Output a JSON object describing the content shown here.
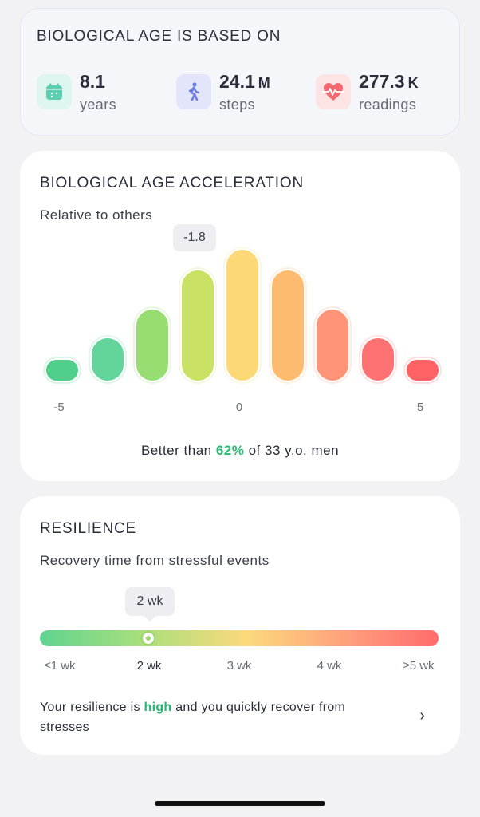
{
  "basis": {
    "title": "BIOLOGICAL AGE IS BASED ON",
    "stats": [
      {
        "value": "8.1",
        "unit": "",
        "label": "years",
        "icon": "calendar-icon",
        "color": "#5bcfb0",
        "bg": "#dff5ef"
      },
      {
        "value": "24.1",
        "unit": "M",
        "label": "steps",
        "icon": "walking-icon",
        "color": "#6f7fe0",
        "bg": "#e3e6fa"
      },
      {
        "value": "277.3",
        "unit": "K",
        "label": "readings",
        "icon": "heart-pulse-icon",
        "color": "#f2686f",
        "bg": "#fde4e4"
      }
    ]
  },
  "acceleration": {
    "title": "BIOLOGICAL AGE ACCELERATION",
    "subtitle": "Relative to others",
    "tooltip": "-1.8",
    "axis": {
      "min": "-5",
      "mid": "0",
      "max": "5"
    },
    "footer": {
      "prefix": "Better than ",
      "highlight": "62%",
      "suffix": " of 33 y.o. men"
    }
  },
  "chart_data": {
    "type": "bar",
    "values": [
      1,
      2.2,
      3.6,
      5.5,
      6.5,
      5.5,
      3.6,
      2.2,
      1
    ],
    "colors": [
      "#4fcf8a",
      "#62d49c",
      "#98dd72",
      "#c9e266",
      "#fcd976",
      "#fdbb6f",
      "#ff9479",
      "#ff7273",
      "#ff6164"
    ],
    "highlight_index": 3,
    "ylim": [
      0,
      6.5
    ],
    "xlabels": [
      "-5",
      "0",
      "5"
    ]
  },
  "resilience": {
    "title": "RESILIENCE",
    "subtitle": "Recovery time from stressful events",
    "tooltip": "2 wk",
    "ticks": [
      "≤1 wk",
      "2 wk",
      "3 wk",
      "4 wk",
      "≥5 wk"
    ],
    "active_tick": 1,
    "text_prefix": "Your resilience is ",
    "text_highlight": "high",
    "text_suffix": " and you quickly recover from stresses"
  }
}
